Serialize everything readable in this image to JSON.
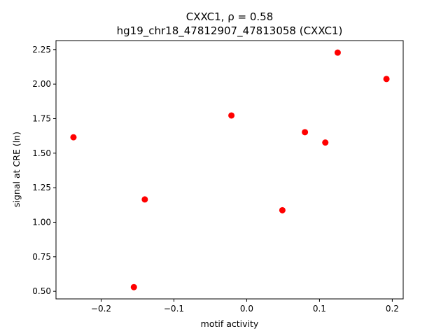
{
  "chart_data": {
    "type": "scatter",
    "title_line1": "CXXC1, ρ = 0.58",
    "title_line2": "hg19_chr18_47812907_47813058 (CXXC1)",
    "xlabel": "motif activity",
    "ylabel": "signal at CRE (ln)",
    "xlim": [
      -0.262,
      0.215
    ],
    "ylim": [
      0.445,
      2.315
    ],
    "xticks": [
      -0.2,
      -0.1,
      0.0,
      0.1,
      0.2
    ],
    "xtick_labels": [
      "−0.2",
      "−0.1",
      "0.0",
      "0.1",
      "0.2"
    ],
    "yticks": [
      0.5,
      0.75,
      1.0,
      1.25,
      1.5,
      1.75,
      2.0,
      2.25
    ],
    "ytick_labels": [
      "0.50",
      "0.75",
      "1.00",
      "1.25",
      "1.50",
      "1.75",
      "2.00",
      "2.25"
    ],
    "marker_color": "#ff0000",
    "grid": false,
    "points": [
      {
        "x": -0.238,
        "y": 1.615
      },
      {
        "x": -0.155,
        "y": 0.53
      },
      {
        "x": -0.14,
        "y": 1.165
      },
      {
        "x": -0.021,
        "y": 1.773
      },
      {
        "x": 0.049,
        "y": 1.087
      },
      {
        "x": 0.08,
        "y": 1.652
      },
      {
        "x": 0.108,
        "y": 1.577
      },
      {
        "x": 0.125,
        "y": 2.228
      },
      {
        "x": 0.192,
        "y": 2.037
      }
    ]
  }
}
